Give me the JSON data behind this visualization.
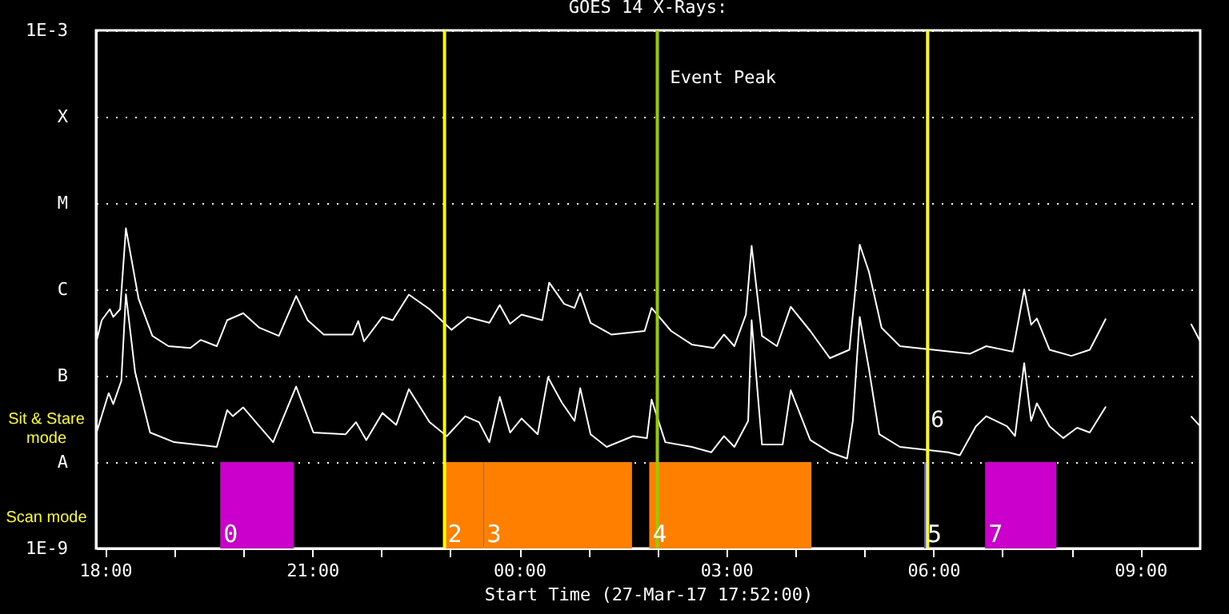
{
  "chart_data": {
    "type": "line",
    "title": "GOES 14 X-Rays:",
    "xlabel": "Start Time (27-Mar-17 17:52:00)",
    "series": [
      {
        "color": "#ffffff",
        "x": [
          "--03-27T17:52",
          "--03-27T17:57",
          "--03-27T18:04",
          "--03-27T18:07",
          "--03-27T18:13",
          "--03-27T18:18",
          "--03-27T18:29",
          "--03-27T18:41",
          "--03-27T18:55",
          "--03-27T19:14",
          "--03-27T19:23",
          "--03-27T19:37",
          "--03-27T19:46",
          "--03-27T20:00",
          "--03-27T20:14",
          "--03-27T20:31",
          "--03-27T20:46",
          "--03-27T20:56",
          "--03-27T21:10",
          "--03-27T21:35",
          "--03-27T21:40",
          "--03-27T21:45",
          "--03-27T22:01",
          "--03-27T22:10",
          "--03-27T22:24",
          "--03-27T22:42",
          "--03-27T23:01",
          "--03-27T23:15",
          "--03-27T23:34",
          "--03-27T23:43",
          "--03-27T23:52",
          "--03-28T00:02",
          "--03-28T00:20",
          "--03-28T00:26",
          "--03-28T00:39",
          "--03-28T00:48",
          "--03-28T00:53",
          "--03-28T01:02",
          "--03-28T01:20",
          "--03-28T01:49",
          "--03-28T01:55",
          "--03-28T02:12",
          "--03-28T02:30",
          "--03-28T02:49",
          "--03-28T02:58",
          "--03-28T03:07",
          "--03-28T03:17",
          "--03-28T03:22",
          "--03-28T03:31",
          "--03-28T03:44",
          "--03-28T03:56",
          "--03-28T04:13",
          "--03-28T04:30",
          "--03-28T04:47",
          "--03-28T04:56",
          "--03-28T05:04",
          "--03-28T05:15",
          "--03-28T05:31",
          "--03-28T06:32",
          "--03-28T06:46",
          "--03-28T07:09",
          "--03-28T07:19",
          "--03-28T07:25",
          "--03-28T07:30",
          "--03-28T07:41",
          "--03-28T08:00",
          "--03-28T08:16",
          "--03-28T08:30",
          "--03-28T09:00",
          "--03-28T09:44",
          "--03-28T09:52"
        ],
        "values": [
          2.4e-07,
          4.4e-07,
          5.9e-07,
          4.8e-07,
          5.9e-07,
          5.1e-06,
          7.8e-07,
          2.9e-07,
          2.2e-07,
          2.1e-07,
          2.6e-07,
          2.2e-07,
          4.4e-07,
          5.3e-07,
          3.6e-07,
          2.9e-07,
          8.4e-07,
          4.4e-07,
          3e-07,
          3e-07,
          4.3e-07,
          2.5e-07,
          4.8e-07,
          4.4e-07,
          8.7e-07,
          5.9e-07,
          3.4e-07,
          4.8e-07,
          4.1e-07,
          6.6e-07,
          4e-07,
          5.1e-07,
          4.4e-07,
          1.2e-06,
          6.8e-07,
          6.1e-07,
          9.1e-07,
          4.1e-07,
          3e-07,
          3.3e-07,
          6.1e-07,
          3.3e-07,
          2.3e-07,
          2.1e-07,
          3e-07,
          2.2e-07,
          5.1e-07,
          3.2e-06,
          2.9e-07,
          2.2e-07,
          6.3e-07,
          3.3e-07,
          1.6e-07,
          2e-07,
          3.3e-06,
          1.6e-06,
          3.6e-07,
          2.2e-07,
          1.8e-07,
          2.2e-07,
          1.9e-07,
          1e-06,
          3.9e-07,
          4.6e-07,
          2e-07,
          1.7e-07,
          2e-07,
          4.6e-07,
          null,
          4e-07,
          2.5e-07
        ]
      },
      {
        "color": "#ffffff",
        "x": [
          "--03-27T17:52",
          "--03-27T18:03",
          "--03-27T18:07",
          "--03-27T18:14",
          "--03-27T18:18",
          "--03-27T18:26",
          "--03-27T18:39",
          "--03-27T19:00",
          "--03-27T19:37",
          "--03-27T19:46",
          "--03-27T19:51",
          "--03-27T20:00",
          "--03-27T20:14",
          "--03-27T20:26",
          "--03-27T20:46",
          "--03-27T21:01",
          "--03-27T21:29",
          "--03-27T21:38",
          "--03-27T21:47",
          "--03-27T22:01",
          "--03-27T22:13",
          "--03-27T22:24",
          "--03-27T22:42",
          "--03-27T22:57",
          "--03-27T23:13",
          "--03-27T23:25",
          "--03-27T23:34",
          "--03-27T23:43",
          "--03-27T23:52",
          "--03-28T00:02",
          "--03-28T00:16",
          "--03-28T00:25",
          "--03-28T00:37",
          "--03-28T00:48",
          "--03-28T00:53",
          "--03-28T01:02",
          "--03-28T01:16",
          "--03-28T01:39",
          "--03-28T01:51",
          "--03-28T01:55",
          "--03-28T02:07",
          "--03-28T02:30",
          "--03-28T02:47",
          "--03-28T02:58",
          "--03-28T03:07",
          "--03-28T03:19",
          "--03-28T03:22",
          "--03-28T03:31",
          "--03-28T03:49",
          "--03-28T03:56",
          "--03-28T04:13",
          "--03-28T04:30",
          "--03-28T04:45",
          "--03-28T04:50",
          "--03-28T04:56",
          "--03-28T05:04",
          "--03-28T05:13",
          "--03-28T05:31",
          "--03-28T06:13",
          "--03-28T06:23",
          "--03-28T06:37",
          "--03-28T06:46",
          "--03-28T07:04",
          "--03-28T07:11",
          "--03-28T07:19",
          "--03-28T07:25",
          "--03-28T07:30",
          "--03-28T07:41",
          "--03-28T07:53",
          "--03-28T08:05",
          "--03-28T08:16",
          "--03-28T08:30",
          "--03-28T09:00",
          "--03-28T09:44",
          "--03-28T09:52"
        ],
        "values": [
          2.1e-08,
          6.3e-08,
          4.7e-08,
          8.7e-08,
          8.8e-07,
          1.1e-07,
          2.2e-08,
          1.7e-08,
          1.5e-08,
          4e-08,
          3.4e-08,
          4.3e-08,
          2.6e-08,
          1.7e-08,
          7.5e-08,
          2.2e-08,
          2.1e-08,
          2.9e-08,
          1.8e-08,
          3.7e-08,
          2.7e-08,
          7e-08,
          2.9e-08,
          2e-08,
          3.4e-08,
          2.9e-08,
          1.7e-08,
          5.7e-08,
          2.2e-08,
          3.2e-08,
          2.1e-08,
          9.6e-08,
          4.9e-08,
          3e-08,
          7.2e-08,
          2.1e-08,
          1.5e-08,
          2e-08,
          1.9e-08,
          5.3e-08,
          1.7e-08,
          1.5e-08,
          1.3e-08,
          2e-08,
          1.5e-08,
          3e-08,
          4.4e-07,
          1.6e-08,
          1.6e-08,
          6.8e-08,
          1.8e-08,
          1.3e-08,
          1.1e-08,
          3e-08,
          4.8e-07,
          1.2e-07,
          2.1e-08,
          1.5e-08,
          1.3e-08,
          1.2e-08,
          2.6e-08,
          3.4e-08,
          2.6e-08,
          2e-08,
          1.4e-07,
          3e-08,
          4.8e-08,
          2.6e-08,
          1.9e-08,
          2.5e-08,
          2.2e-08,
          4.4e-08,
          null,
          3.4e-08,
          2.6e-08
        ]
      }
    ],
    "xlim": [
      "--03-27T17:52",
      "--03-28T09:52"
    ],
    "xticks": [
      {
        "value": "--03-27T18:00",
        "label": "18:00"
      },
      {
        "value": "--03-27T19:00",
        "label": null
      },
      {
        "value": "--03-27T20:00",
        "label": null
      },
      {
        "value": "--03-27T21:00",
        "label": "21:00"
      },
      {
        "value": "--03-27T22:00",
        "label": null
      },
      {
        "value": "--03-27T23:00",
        "label": null
      },
      {
        "value": "--03-28T00:00",
        "label": "00:00"
      },
      {
        "value": "--03-28T01:00",
        "label": null
      },
      {
        "value": "--03-28T02:00",
        "label": null
      },
      {
        "value": "--03-28T03:00",
        "label": "03:00"
      },
      {
        "value": "--03-28T04:00",
        "label": null
      },
      {
        "value": "--03-28T05:00",
        "label": null
      },
      {
        "value": "--03-28T06:00",
        "label": "06:00"
      },
      {
        "value": "--03-28T07:00",
        "label": null
      },
      {
        "value": "--03-28T08:00",
        "label": null
      },
      {
        "value": "--03-28T09:00",
        "label": "09:00"
      }
    ],
    "ylim": [
      1e-09,
      0.001
    ],
    "yticks": [
      {
        "value": 1e-09,
        "label": "1E-9"
      },
      {
        "value": 1e-08,
        "label": "A"
      },
      {
        "value": 1e-07,
        "label": "B"
      },
      {
        "value": 1e-06,
        "label": "C"
      },
      {
        "value": 1e-05,
        "label": "M"
      },
      {
        "value": 0.0001,
        "label": "X"
      },
      {
        "value": 0.001,
        "label": "1E-3"
      }
    ],
    "log": "y",
    "grid": "y",
    "ref_lines": [
      {
        "axis": "x",
        "value": "--03-27T22:55",
        "color": "#ffff00"
      },
      {
        "axis": "x",
        "value": "--03-28T02:00",
        "label": "Event Peak",
        "color": "#99cc00"
      },
      {
        "axis": "x",
        "value": "--03-28T05:55",
        "color": "#ffff00"
      }
    ],
    "bands": [
      {
        "axis": "x",
        "from": "--03-27T19:40",
        "to": "--03-27T20:44",
        "label": "0",
        "color": "#cc00cc"
      },
      {
        "axis": "x",
        "from": "--03-27T22:55",
        "to": "--03-27T23:29",
        "label": "2",
        "color": "#ff8000"
      },
      {
        "axis": "x",
        "from": "--03-27T23:29",
        "to": "--03-28T01:38",
        "label": "3",
        "color": "#ff8000"
      },
      {
        "axis": "x",
        "from": "--03-28T01:53",
        "to": "--03-28T04:14",
        "label": "4",
        "color": "#ff8000"
      },
      {
        "axis": "x",
        "from": "--03-28T05:52",
        "to": "--03-28T05:55",
        "label": "5",
        "color": "#5555ff"
      },
      {
        "axis": "x",
        "from": "--03-28T06:45",
        "to": "--03-28T07:47",
        "label": "7",
        "color": "#cc00cc"
      }
    ],
    "annotations": [
      "Sit & Stare mode",
      "Scan mode",
      {
        "text": "6",
        "x": "--03-28T05:55",
        "y": 3e-08
      }
    ]
  }
}
